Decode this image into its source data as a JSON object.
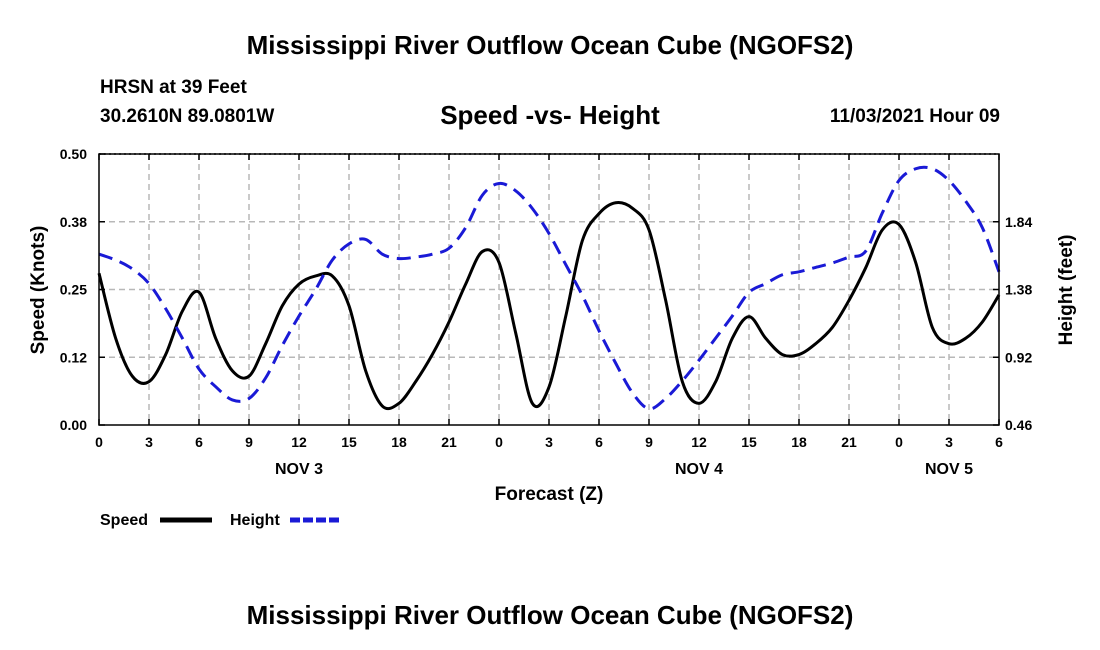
{
  "header": {
    "title": "Mississippi River Outflow Ocean Cube (NGOFS2)",
    "station": "HRSN at 39 Feet",
    "coords": "30.2610N  89.0801W",
    "subtitle": "Speed -vs- Height",
    "timestamp": "11/03/2021 Hour 09"
  },
  "footer": {
    "title": "Mississippi River Outflow Ocean Cube (NGOFS2)"
  },
  "colors": {
    "speed": "#000000",
    "height": "#1a1ad6",
    "grid": "#b8b8b8"
  },
  "chart_data": {
    "type": "line",
    "title": "Speed -vs- Height",
    "xlabel": "Forecast (Z)",
    "ylabel": "Speed (Knots)",
    "y2label": "Height (feet)",
    "xlim": [
      0,
      54
    ],
    "ylim": [
      0,
      0.5
    ],
    "y2lim": [
      0.46,
      2.3
    ],
    "x_ticks": [
      0,
      3,
      6,
      9,
      12,
      15,
      18,
      21,
      24,
      27,
      30,
      33,
      36,
      39,
      42,
      45,
      48,
      51,
      54
    ],
    "x_tick_labels": [
      "0",
      "3",
      "6",
      "9",
      "12",
      "15",
      "18",
      "21",
      "0",
      "3",
      "6",
      "9",
      "12",
      "15",
      "18",
      "21",
      "0",
      "3",
      "6"
    ],
    "y_ticks": [
      0,
      0.125,
      0.25,
      0.375,
      0.5
    ],
    "y_tick_labels": [
      "0.00",
      "0.12",
      "0.25",
      "0.38",
      "0.50"
    ],
    "y2_ticks": [
      0.46,
      0.92,
      1.38,
      1.84
    ],
    "y2_tick_labels": [
      "0.46",
      "0.92",
      "1.38",
      "1.84"
    ],
    "day_labels": [
      {
        "x": 12,
        "label": "NOV 3"
      },
      {
        "x": 36,
        "label": "NOV 4"
      },
      {
        "x": 51,
        "label": "NOV 5"
      }
    ],
    "grid": true,
    "legend": "bottom-left",
    "series": [
      {
        "name": "Speed",
        "axis": "left",
        "style": "solid",
        "x": [
          0,
          1,
          2,
          3,
          4,
          5,
          6,
          7,
          8,
          9,
          10,
          11,
          12,
          13,
          14,
          15,
          16,
          17,
          18,
          19,
          20,
          21,
          22,
          23,
          24,
          25,
          26,
          27,
          28,
          29,
          30,
          31,
          32,
          33,
          34,
          35,
          36,
          37,
          38,
          39,
          40,
          41,
          42,
          43,
          44,
          45,
          46,
          47,
          48,
          49,
          50,
          51,
          52,
          53,
          54
        ],
        "values": [
          0.28,
          0.16,
          0.09,
          0.08,
          0.13,
          0.21,
          0.245,
          0.16,
          0.1,
          0.09,
          0.15,
          0.22,
          0.26,
          0.275,
          0.275,
          0.22,
          0.1,
          0.035,
          0.04,
          0.08,
          0.13,
          0.19,
          0.26,
          0.32,
          0.3,
          0.17,
          0.04,
          0.07,
          0.2,
          0.34,
          0.39,
          0.41,
          0.4,
          0.36,
          0.23,
          0.08,
          0.04,
          0.08,
          0.16,
          0.2,
          0.16,
          0.13,
          0.13,
          0.15,
          0.18,
          0.23,
          0.29,
          0.36,
          0.37,
          0.3,
          0.18,
          0.15,
          0.16,
          0.19,
          0.24
        ]
      },
      {
        "name": "Height",
        "axis": "right",
        "style": "dashed",
        "x": [
          0,
          1,
          2,
          3,
          4,
          5,
          6,
          7,
          8,
          9,
          10,
          11,
          12,
          13,
          14,
          15,
          16,
          17,
          18,
          19,
          20,
          21,
          22,
          23,
          24,
          25,
          26,
          27,
          28,
          29,
          30,
          31,
          32,
          33,
          34,
          35,
          36,
          37,
          38,
          39,
          40,
          41,
          42,
          43,
          44,
          45,
          46,
          47,
          48,
          49,
          50,
          51,
          52,
          53,
          54
        ],
        "values": [
          1.62,
          1.58,
          1.52,
          1.42,
          1.25,
          1.05,
          0.84,
          0.72,
          0.63,
          0.64,
          0.78,
          1.0,
          1.2,
          1.38,
          1.58,
          1.69,
          1.72,
          1.62,
          1.59,
          1.6,
          1.62,
          1.66,
          1.8,
          2.02,
          2.1,
          2.05,
          1.93,
          1.76,
          1.55,
          1.34,
          1.1,
          0.88,
          0.68,
          0.57,
          0.64,
          0.76,
          0.9,
          1.05,
          1.2,
          1.36,
          1.42,
          1.48,
          1.5,
          1.53,
          1.56,
          1.6,
          1.64,
          1.9,
          2.12,
          2.2,
          2.2,
          2.12,
          1.98,
          1.8,
          1.5
        ]
      }
    ]
  }
}
